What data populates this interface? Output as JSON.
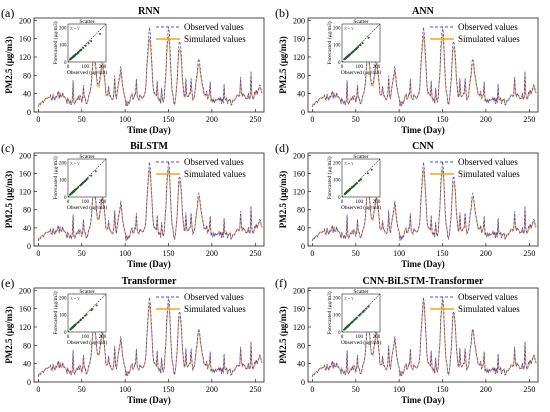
{
  "legend": {
    "observed": "Observed values",
    "simulated": "Simulated values"
  },
  "colors": {
    "observed": "#4a4ae6",
    "simulated": "#f5a31a",
    "scatter": "#1f5e2e",
    "axis": "#222222"
  },
  "axes": {
    "xlabel": "Time (Day)",
    "ylabel": "PM2.5 (μg/m3)",
    "xticks": [
      "0",
      "50",
      "100",
      "150",
      "200",
      "250"
    ],
    "yticks": [
      "0",
      "40",
      "80",
      "120",
      "160",
      "200"
    ]
  },
  "inset": {
    "title": "Scatter",
    "xlabel": "Observed (μg/m3)",
    "ylabel": "Forecasted (μg/m3)",
    "ticks": [
      "0",
      "100",
      "200"
    ],
    "fit_label": "X = Y"
  },
  "chart_data": [
    {
      "type": "line",
      "panel": "(a)",
      "title": "RNN",
      "xlim": [
        -5,
        260
      ],
      "ylim": [
        0,
        200
      ],
      "series": [
        {
          "name": "Observed values"
        },
        {
          "name": "Simulated values"
        }
      ],
      "observed_peaks": [
        [
          64,
          120
        ],
        [
          74,
          104
        ],
        [
          95,
          102
        ],
        [
          128,
          170
        ],
        [
          150,
          190
        ],
        [
          163,
          170
        ],
        [
          185,
          112
        ],
        [
          255,
          56
        ]
      ]
    },
    {
      "type": "line",
      "panel": "(b)",
      "title": "ANN",
      "xlim": [
        -5,
        260
      ],
      "ylim": [
        0,
        200
      ],
      "series": [
        {
          "name": "Observed values"
        },
        {
          "name": "Simulated values"
        }
      ]
    },
    {
      "type": "line",
      "panel": "(c)",
      "title": "BiLSTM",
      "xlim": [
        -5,
        260
      ],
      "ylim": [
        0,
        200
      ],
      "series": [
        {
          "name": "Observed values"
        },
        {
          "name": "Simulated values"
        }
      ]
    },
    {
      "type": "line",
      "panel": "(d)",
      "title": "CNN",
      "xlim": [
        -5,
        260
      ],
      "ylim": [
        0,
        200
      ],
      "series": [
        {
          "name": "Observed values"
        },
        {
          "name": "Simulated values"
        }
      ]
    },
    {
      "type": "line",
      "panel": "(e)",
      "title": "Transformer",
      "xlim": [
        -5,
        260
      ],
      "ylim": [
        0,
        200
      ],
      "series": [
        {
          "name": "Observed values"
        },
        {
          "name": "Simulated values"
        }
      ]
    },
    {
      "type": "line",
      "panel": "(f)",
      "title": "CNN-BiLSTM-Transformer",
      "xlim": [
        -5,
        260
      ],
      "ylim": [
        0,
        200
      ],
      "series": [
        {
          "name": "Observed values"
        },
        {
          "name": "Simulated values"
        }
      ]
    }
  ]
}
